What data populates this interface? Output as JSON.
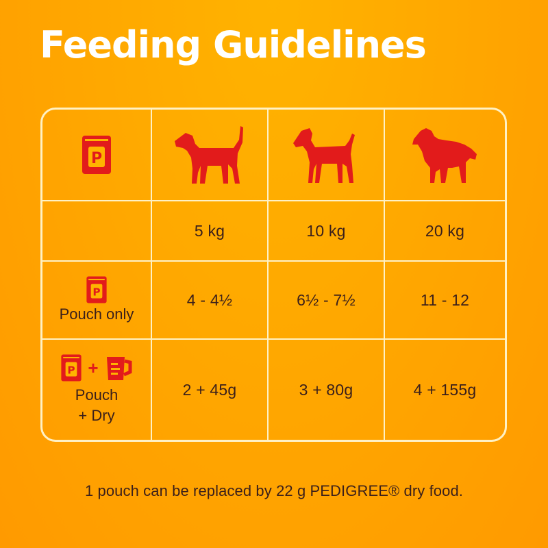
{
  "title": "Feeding Guidelines",
  "header": {
    "icons": [
      "pedigree-pouch-icon",
      "small-dog-icon",
      "medium-dog-icon",
      "large-dog-icon"
    ]
  },
  "weights": [
    "5 kg",
    "10 kg",
    "20 kg"
  ],
  "rows": [
    {
      "label_lines": [
        "Pouch only"
      ],
      "values": [
        "4 - 4½",
        "6½ - 7½",
        "11 - 12"
      ],
      "icon": "pedigree-pouch-icon"
    },
    {
      "label_lines": [
        "Pouch",
        "+ Dry"
      ],
      "values": [
        "2 + 45g",
        "3 + 80g",
        "4 + 155g"
      ],
      "icon": "pouch-plus-dry-icon",
      "plus": "+"
    }
  ],
  "footer": "1 pouch can be replaced by 22 g PEDIGREE® dry food.",
  "colors": {
    "background": "#ffa800",
    "text": "#3a1f1b",
    "accent_red": "#e21b1b",
    "grid_line": "#fff1c4",
    "title": "#ffffff"
  }
}
